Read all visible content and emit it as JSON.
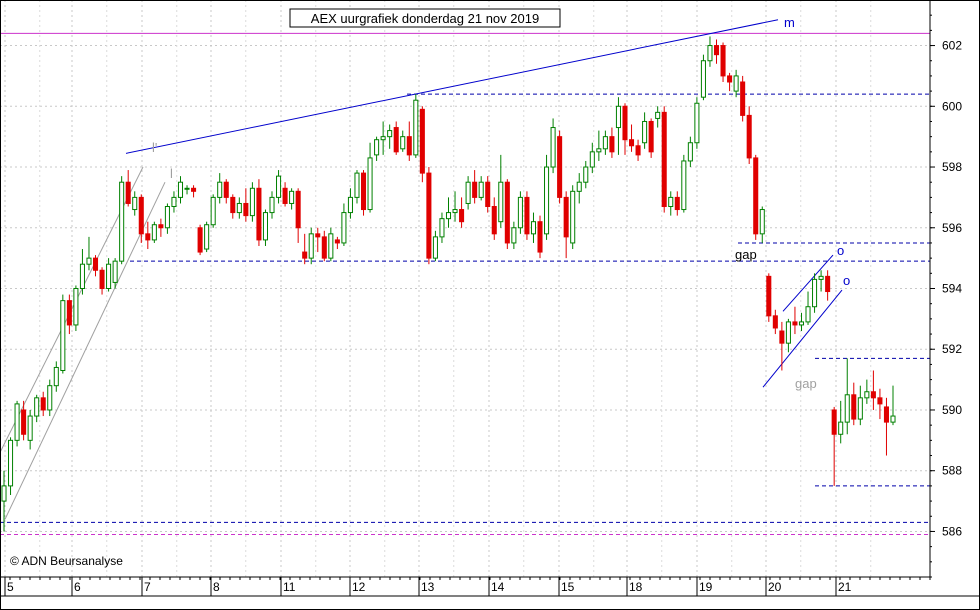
{
  "chart_data": {
    "type": "candlestick",
    "title": "AEX uurgrafiek donderdag 21 nov 2019",
    "copyright": "© ADN Beursanalyse",
    "ylim": [
      584.5,
      603.5
    ],
    "y_ticks": [
      586,
      588,
      590,
      592,
      594,
      596,
      598,
      600,
      602
    ],
    "x_day_labels": [
      "5",
      "6",
      "7",
      "8",
      "11",
      "12",
      "13",
      "14",
      "15",
      "18",
      "19",
      "20",
      "21"
    ],
    "grid": true,
    "colors": {
      "up": "#008000",
      "down": "#e00000",
      "trend": "#0000cc",
      "resistance": "#cc33cc",
      "support": "#0000aa",
      "channel": "#a0a0a0"
    },
    "horizontal_lines": [
      {
        "y": 602.4,
        "style": "solid",
        "color": "#cc33cc"
      },
      {
        "y": 600.4,
        "style": "dashed",
        "color": "#0000aa"
      },
      {
        "y": 595.5,
        "style": "dashed",
        "color": "#0000aa"
      },
      {
        "y": 594.9,
        "style": "dashed",
        "color": "#0000aa"
      },
      {
        "y": 591.7,
        "style": "dashed",
        "color": "#0000aa"
      },
      {
        "y": 587.5,
        "style": "dashed",
        "color": "#0000aa"
      },
      {
        "y": 586.3,
        "style": "dashed",
        "color": "#0000aa"
      },
      {
        "y": 585.9,
        "style": "dashed",
        "color": "#cc33cc"
      }
    ],
    "annotations": [
      {
        "text": "m",
        "color": "#0000cc"
      },
      {
        "text": "gap",
        "color": "#000000"
      },
      {
        "text": "o",
        "color": "#0000cc"
      },
      {
        "text": "o",
        "color": "#0000cc"
      },
      {
        "text": "gap",
        "color": "#a0a0a0"
      },
      {
        "text": "l'",
        "color": "#a0a0a0"
      },
      {
        "text": "l",
        "color": "#a0a0a0"
      }
    ],
    "candles": [
      [
        587.0,
        587.5,
        586.0,
        588.0
      ],
      [
        587.5,
        589.0,
        587.2,
        589.1
      ],
      [
        589.0,
        590.2,
        588.8,
        590.3
      ],
      [
        590.0,
        589.2,
        589.0,
        590.3
      ],
      [
        589.0,
        589.8,
        588.7,
        590.0
      ],
      [
        589.8,
        590.4,
        589.6,
        590.5
      ],
      [
        590.4,
        590.0,
        589.8,
        590.6
      ],
      [
        590.0,
        590.8,
        589.8,
        591.0
      ],
      [
        590.8,
        591.4,
        590.6,
        591.6
      ],
      [
        591.3,
        593.6,
        591.2,
        593.8
      ],
      [
        593.6,
        592.8,
        592.5,
        593.8
      ],
      [
        592.8,
        594.0,
        592.6,
        594.1
      ],
      [
        594.0,
        594.8,
        593.8,
        595.3
      ],
      [
        594.8,
        595.0,
        594.6,
        595.7
      ],
      [
        595.0,
        594.6,
        594.4,
        595.1
      ],
      [
        594.6,
        594.0,
        593.8,
        594.7
      ],
      [
        594.0,
        594.8,
        593.9,
        595.0
      ],
      [
        594.2,
        594.9,
        594.0,
        595.0
      ],
      [
        594.9,
        597.5,
        594.8,
        597.7
      ],
      [
        597.5,
        596.8,
        596.7,
        597.9
      ],
      [
        596.6,
        597.0,
        596.4,
        597.2
      ],
      [
        597.0,
        595.8,
        595.5,
        597.1
      ],
      [
        595.8,
        595.6,
        595.3,
        596.2
      ],
      [
        595.6,
        596.1,
        595.5,
        596.2
      ],
      [
        596.1,
        596.0,
        595.7,
        596.3
      ],
      [
        596.0,
        596.7,
        595.8,
        596.8
      ],
      [
        596.7,
        597.0,
        596.5,
        597.2
      ],
      [
        597.0,
        597.5,
        596.8,
        597.7
      ],
      [
        597.3,
        597.3,
        597.1,
        597.4
      ],
      [
        597.3,
        597.2,
        597.0,
        597.4
      ],
      [
        596.0,
        595.2,
        595.1,
        596.1
      ],
      [
        595.3,
        596.1,
        595.2,
        596.2
      ],
      [
        596.1,
        597.0,
        596.0,
        597.1
      ],
      [
        597.0,
        597.5,
        596.8,
        597.8
      ],
      [
        597.5,
        597.0,
        596.8,
        597.6
      ],
      [
        597.0,
        596.5,
        596.3,
        597.1
      ],
      [
        596.5,
        596.8,
        596.3,
        597.0
      ],
      [
        596.8,
        596.4,
        596.2,
        597.3
      ],
      [
        596.4,
        597.3,
        596.2,
        597.5
      ],
      [
        597.3,
        595.6,
        595.4,
        597.6
      ],
      [
        595.6,
        596.5,
        595.4,
        596.6
      ],
      [
        596.5,
        597.0,
        596.3,
        597.2
      ],
      [
        597.0,
        597.7,
        596.8,
        597.9
      ],
      [
        597.3,
        596.8,
        596.7,
        597.5
      ],
      [
        596.8,
        597.2,
        596.6,
        597.3
      ],
      [
        597.2,
        596.0,
        595.5,
        597.3
      ],
      [
        595.2,
        595.0,
        594.8,
        595.8
      ],
      [
        595.0,
        595.8,
        594.8,
        596.0
      ],
      [
        595.8,
        595.7,
        595.2,
        596.0
      ],
      [
        595.7,
        595.0,
        594.9,
        595.9
      ],
      [
        595.0,
        595.8,
        594.9,
        596.0
      ],
      [
        595.6,
        595.5,
        595.3,
        595.7
      ],
      [
        595.5,
        596.5,
        595.4,
        596.8
      ],
      [
        596.5,
        597.0,
        596.3,
        597.3
      ],
      [
        597.0,
        597.8,
        596.8,
        597.9
      ],
      [
        597.8,
        596.6,
        596.4,
        597.9
      ],
      [
        596.6,
        598.3,
        596.5,
        598.8
      ],
      [
        598.4,
        598.9,
        598.2,
        599.0
      ],
      [
        598.9,
        599.0,
        598.4,
        599.5
      ],
      [
        599.0,
        599.2,
        598.6,
        599.4
      ],
      [
        599.3,
        598.5,
        598.4,
        599.5
      ],
      [
        598.6,
        599.0,
        598.5,
        599.2
      ],
      [
        599.0,
        598.4,
        598.2,
        599.5
      ],
      [
        598.4,
        600.2,
        598.3,
        600.4
      ],
      [
        599.9,
        597.8,
        597.5,
        600.0
      ],
      [
        597.8,
        595.0,
        594.8,
        598.0
      ],
      [
        595.0,
        595.7,
        594.9,
        595.9
      ],
      [
        595.7,
        596.3,
        595.5,
        596.5
      ],
      [
        596.3,
        596.5,
        596.0,
        597.0
      ],
      [
        596.5,
        596.6,
        596.2,
        597.2
      ],
      [
        596.6,
        596.2,
        596.0,
        597.0
      ],
      [
        596.8,
        597.5,
        596.6,
        597.7
      ],
      [
        597.5,
        597.0,
        596.8,
        597.9
      ],
      [
        597.0,
        597.5,
        596.9,
        597.7
      ],
      [
        597.5,
        596.7,
        596.5,
        597.7
      ],
      [
        596.7,
        595.8,
        595.6,
        597.0
      ],
      [
        596.2,
        597.5,
        596.0,
        598.4
      ],
      [
        597.5,
        595.5,
        595.3,
        597.6
      ],
      [
        595.5,
        596.0,
        595.3,
        596.2
      ],
      [
        596.0,
        597.0,
        595.8,
        597.2
      ],
      [
        597.0,
        595.8,
        595.6,
        597.2
      ],
      [
        595.8,
        596.2,
        595.5,
        596.5
      ],
      [
        596.2,
        595.2,
        595.0,
        596.4
      ],
      [
        595.8,
        598.0,
        595.6,
        598.4
      ],
      [
        598.0,
        599.3,
        597.8,
        599.6
      ],
      [
        599.0,
        597.0,
        596.8,
        599.2
      ],
      [
        597.0,
        595.7,
        595.0,
        597.2
      ],
      [
        595.5,
        597.2,
        595.3,
        597.4
      ],
      [
        597.2,
        597.5,
        596.8,
        597.8
      ],
      [
        597.5,
        598.0,
        597.3,
        598.2
      ],
      [
        598.0,
        598.5,
        597.8,
        598.8
      ],
      [
        598.5,
        598.6,
        598.2,
        599.2
      ],
      [
        598.6,
        599.0,
        598.4,
        599.2
      ],
      [
        599.0,
        598.5,
        598.3,
        599.3
      ],
      [
        599.3,
        600.0,
        598.4,
        600.3
      ],
      [
        600.0,
        598.9,
        598.4,
        600.1
      ],
      [
        598.9,
        598.7,
        598.5,
        599.4
      ],
      [
        598.7,
        598.4,
        598.2,
        598.9
      ],
      [
        598.8,
        599.5,
        598.6,
        599.8
      ],
      [
        599.5,
        598.5,
        598.3,
        599.6
      ],
      [
        599.6,
        599.8,
        599.3,
        600.0
      ],
      [
        599.8,
        596.7,
        596.5,
        600.0
      ],
      [
        596.7,
        597.0,
        596.4,
        597.2
      ],
      [
        597.0,
        596.6,
        596.4,
        597.2
      ],
      [
        596.6,
        598.2,
        596.5,
        598.4
      ],
      [
        598.2,
        598.8,
        598.0,
        599.0
      ],
      [
        598.8,
        600.1,
        598.6,
        600.3
      ],
      [
        600.3,
        601.5,
        600.2,
        601.7
      ],
      [
        601.5,
        602.0,
        601.3,
        602.3
      ],
      [
        602.0,
        601.7,
        601.4,
        602.2
      ],
      [
        602.0,
        601.0,
        600.8,
        602.1
      ],
      [
        601.0,
        600.8,
        600.5,
        601.1
      ],
      [
        600.5,
        601.0,
        600.3,
        601.2
      ],
      [
        600.8,
        599.7,
        599.5,
        601.0
      ],
      [
        599.7,
        598.3,
        598.1,
        600.0
      ],
      [
        598.3,
        595.8,
        595.6,
        598.4
      ],
      [
        595.8,
        596.6,
        595.5,
        596.7
      ],
      [
        594.4,
        593.1,
        592.9,
        594.5
      ],
      [
        593.1,
        592.7,
        592.5,
        593.3
      ],
      [
        592.6,
        592.2,
        591.3,
        592.9
      ],
      [
        592.2,
        592.9,
        591.9,
        593.0
      ],
      [
        592.9,
        592.8,
        592.5,
        593.4
      ],
      [
        592.8,
        592.9,
        592.6,
        593.2
      ],
      [
        592.9,
        593.4,
        592.8,
        593.9
      ],
      [
        593.4,
        594.3,
        593.2,
        594.5
      ],
      [
        594.3,
        594.4,
        593.9,
        594.6
      ],
      [
        594.4,
        593.9,
        593.6,
        594.6
      ],
      [
        590.0,
        589.2,
        587.5,
        590.1
      ],
      [
        589.2,
        589.6,
        588.9,
        590.3
      ],
      [
        589.6,
        590.5,
        589.2,
        591.7
      ],
      [
        590.5,
        589.7,
        589.5,
        590.9
      ],
      [
        589.7,
        590.4,
        589.5,
        590.8
      ],
      [
        590.4,
        590.6,
        590.2,
        591.0
      ],
      [
        590.6,
        590.4,
        590.0,
        591.3
      ],
      [
        590.4,
        590.2,
        589.7,
        590.7
      ],
      [
        590.1,
        589.6,
        588.5,
        590.4
      ],
      [
        589.6,
        589.8,
        589.5,
        590.8
      ]
    ]
  }
}
